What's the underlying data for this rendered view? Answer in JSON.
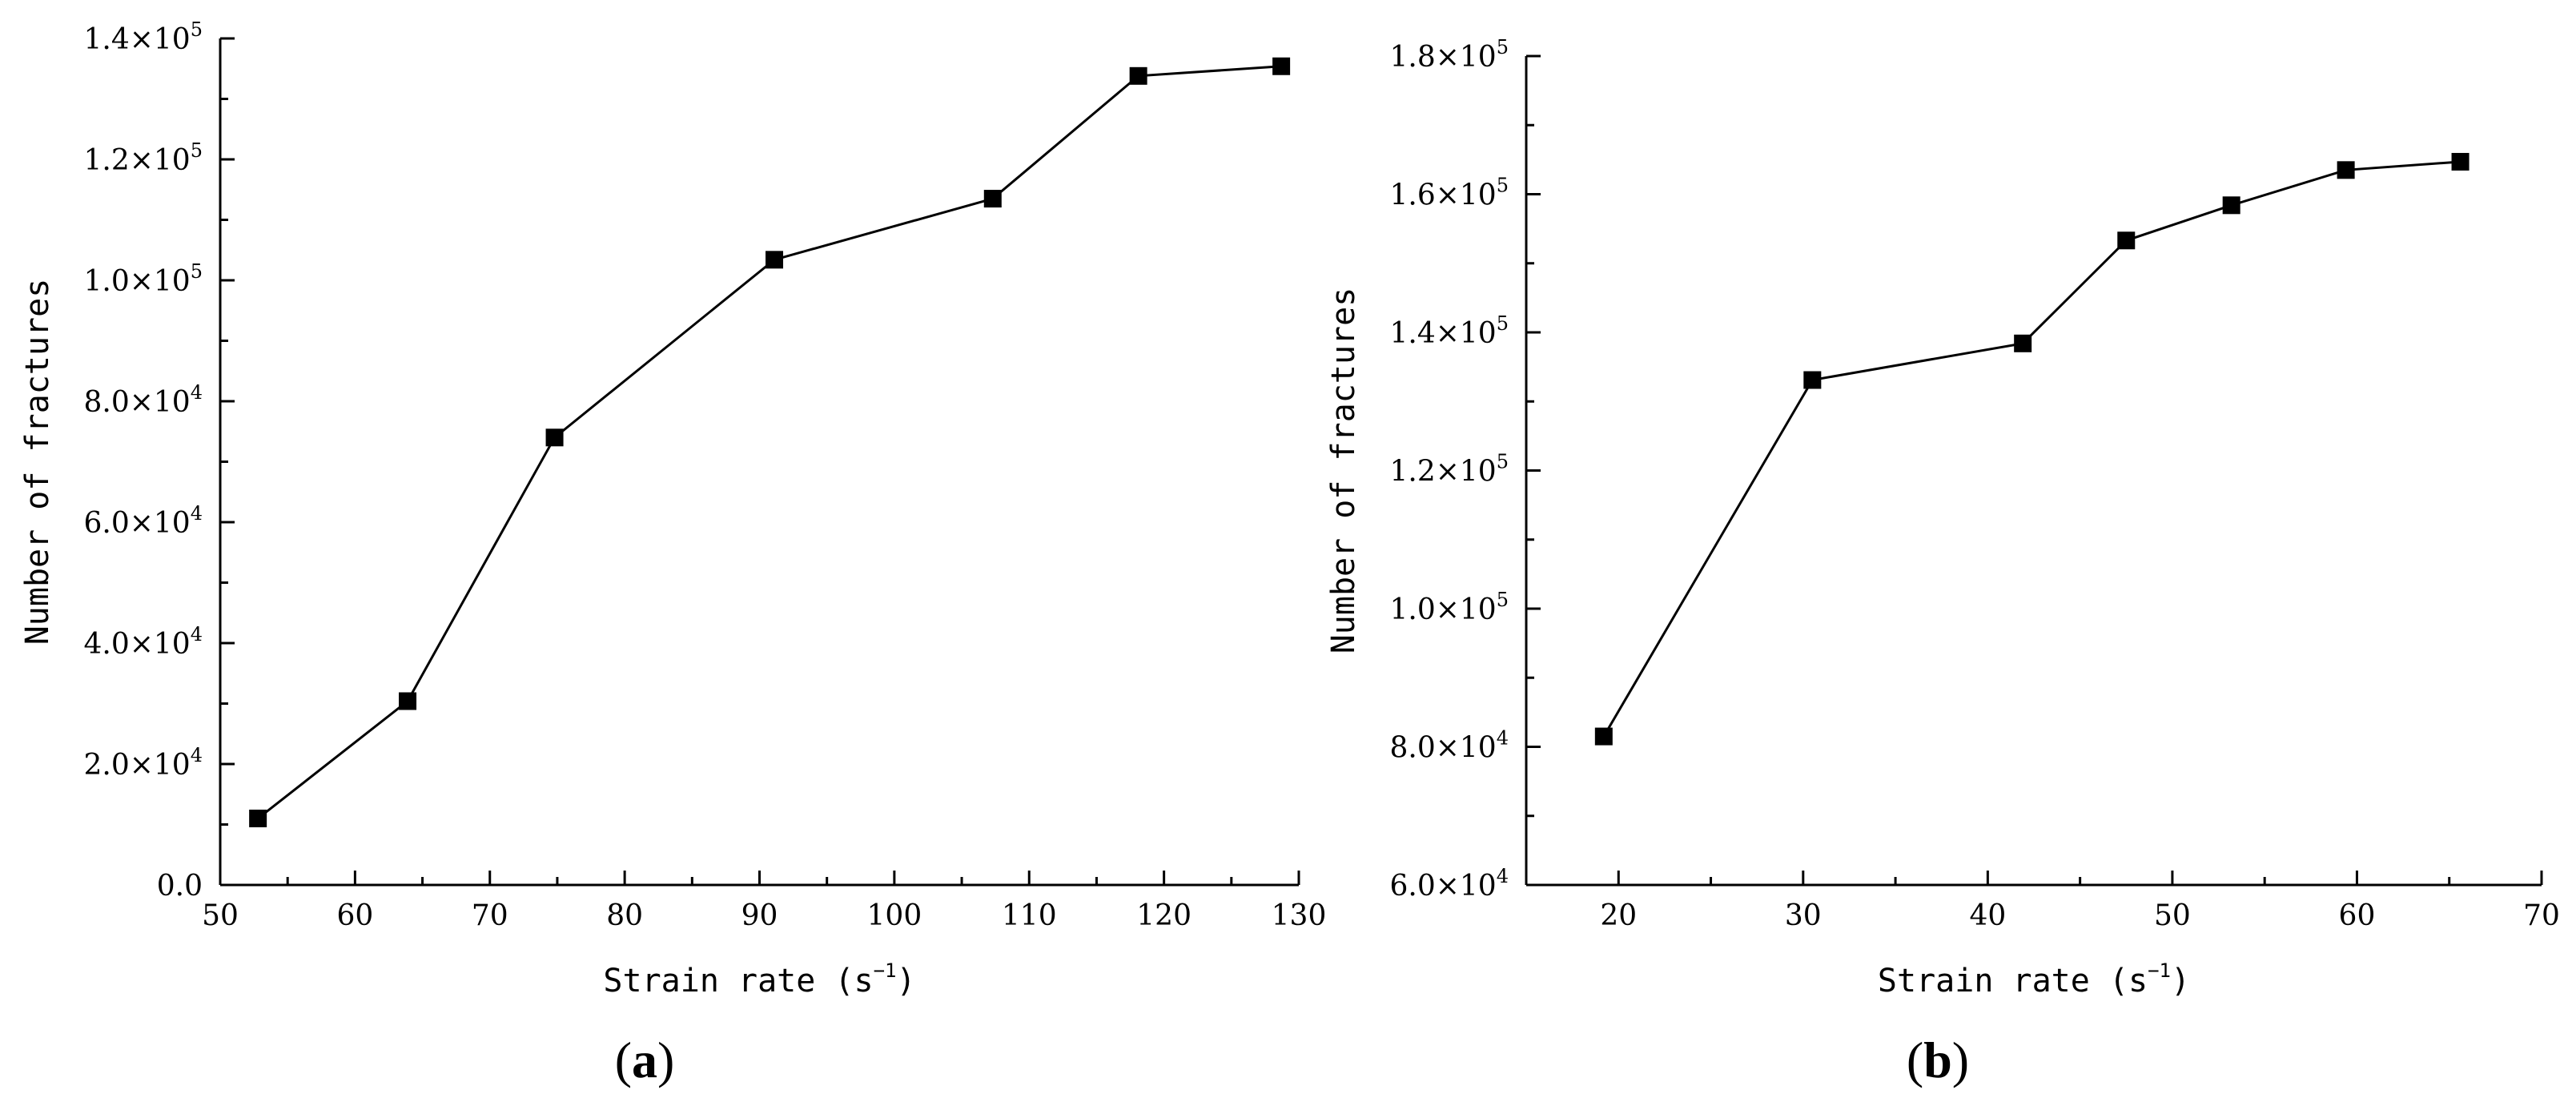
{
  "chart_data": [
    {
      "type": "line",
      "panel_label": "a",
      "title": "",
      "xlabel": "Strain rate",
      "xlabel_unit": "s",
      "xlabel_unit_exp": "−1",
      "ylabel": "Number of fractures",
      "xlim": [
        50,
        130
      ],
      "ylim": [
        0,
        140000
      ],
      "x_ticks": [
        50,
        60,
        70,
        80,
        90,
        100,
        110,
        120,
        130
      ],
      "y_ticks": [
        {
          "value": 0,
          "mantissa": "0.0",
          "exponent": ""
        },
        {
          "value": 20000,
          "mantissa": "2.0",
          "exponent": "4"
        },
        {
          "value": 40000,
          "mantissa": "4.0",
          "exponent": "4"
        },
        {
          "value": 60000,
          "mantissa": "6.0",
          "exponent": "4"
        },
        {
          "value": 80000,
          "mantissa": "8.0",
          "exponent": "4"
        },
        {
          "value": 100000,
          "mantissa": "1.0",
          "exponent": "5"
        },
        {
          "value": 120000,
          "mantissa": "1.2",
          "exponent": "5"
        },
        {
          "value": 140000,
          "mantissa": "1.4",
          "exponent": "5"
        }
      ],
      "grid": false,
      "marker": "square",
      "series": [
        {
          "x": [
            52.8,
            63.9,
            74.8,
            91.1,
            107.3,
            118.1,
            128.7
          ],
          "y": [
            11000,
            30400,
            74000,
            103400,
            113500,
            133800,
            135400
          ]
        }
      ]
    },
    {
      "type": "line",
      "panel_label": "b",
      "title": "",
      "xlabel": "Strain rate",
      "xlabel_unit": "s",
      "xlabel_unit_exp": "−1",
      "ylabel": "Number of fractures",
      "xlim": [
        15,
        70
      ],
      "ylim": [
        60000,
        180000
      ],
      "x_ticks": [
        20,
        30,
        40,
        50,
        60,
        70
      ],
      "y_ticks": [
        {
          "value": 60000,
          "mantissa": "6.0",
          "exponent": "4"
        },
        {
          "value": 80000,
          "mantissa": "8.0",
          "exponent": "4"
        },
        {
          "value": 100000,
          "mantissa": "1.0",
          "exponent": "5"
        },
        {
          "value": 120000,
          "mantissa": "1.2",
          "exponent": "5"
        },
        {
          "value": 140000,
          "mantissa": "1.4",
          "exponent": "5"
        },
        {
          "value": 160000,
          "mantissa": "1.6",
          "exponent": "5"
        },
        {
          "value": 180000,
          "mantissa": "1.8",
          "exponent": "5"
        }
      ],
      "grid": false,
      "marker": "square",
      "series": [
        {
          "x": [
            19.2,
            30.5,
            41.9,
            47.5,
            53.2,
            59.4,
            65.6
          ],
          "y": [
            81500,
            133100,
            138400,
            153300,
            158400,
            163500,
            164700
          ]
        }
      ]
    }
  ]
}
